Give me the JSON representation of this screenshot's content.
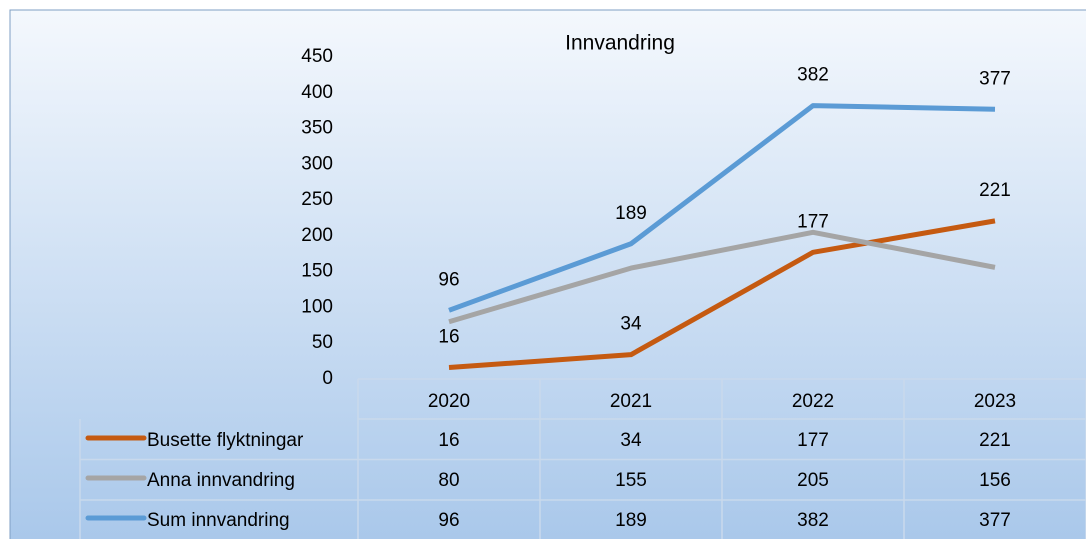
{
  "chart_data": {
    "type": "line",
    "title": "Innvandring",
    "categories": [
      "2020",
      "2021",
      "2022",
      "2023"
    ],
    "series": [
      {
        "name": "Busette flyktningar",
        "color": "#c55a11",
        "values": [
          16,
          34,
          177,
          221
        ],
        "data_labels": true
      },
      {
        "name": "Anna innvandring",
        "color": "#a5a5a5",
        "values": [
          80,
          155,
          205,
          156
        ],
        "data_labels": false
      },
      {
        "name": "Sum innvandring",
        "color": "#5b9bd5",
        "values": [
          96,
          189,
          382,
          377
        ],
        "data_labels": true
      }
    ],
    "ylim": [
      0,
      450
    ],
    "yticks": [
      0,
      50,
      100,
      150,
      200,
      250,
      300,
      350,
      400,
      450
    ],
    "grid": false,
    "data_table": true
  }
}
